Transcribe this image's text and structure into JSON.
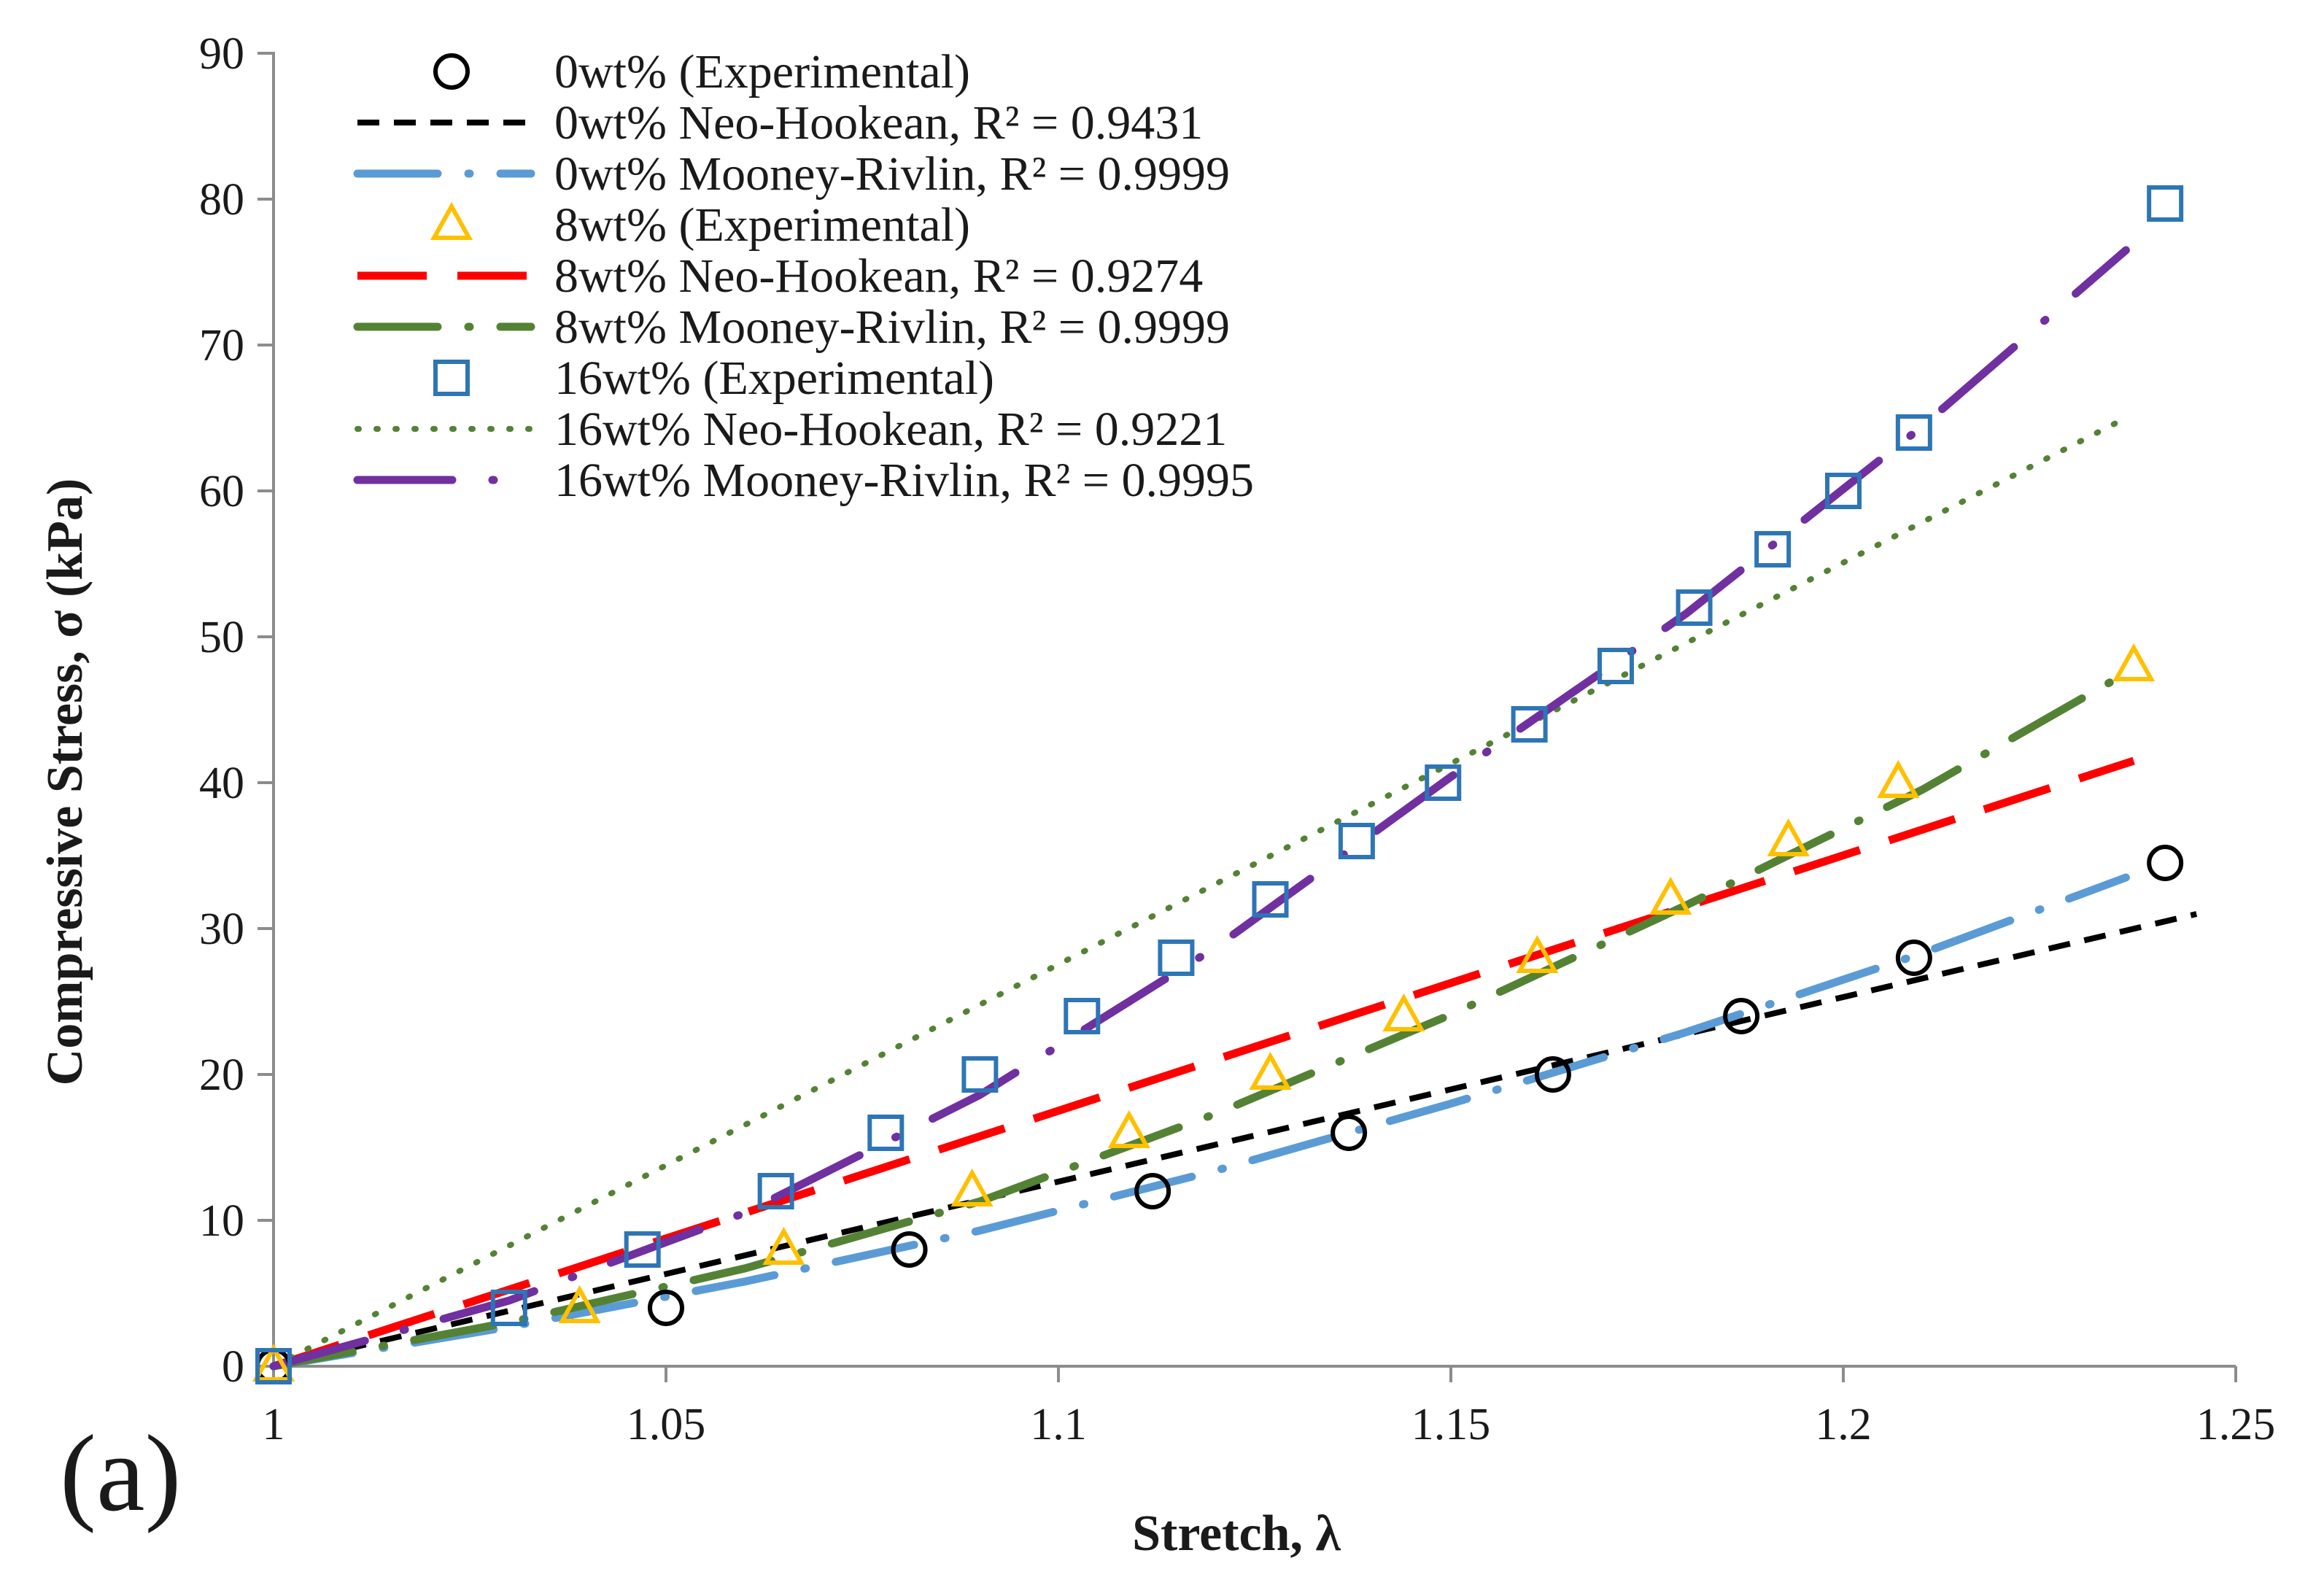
{
  "chart_data": {
    "type": "scatter",
    "panel_label": "(a)",
    "xlabel": "Stretch, λ",
    "ylabel": "Compressive Stress, σ (kPa)",
    "xlim": [
      1,
      1.25
    ],
    "ylim": [
      0,
      90
    ],
    "xticks": [
      1,
      1.05,
      1.1,
      1.15,
      1.2,
      1.25
    ],
    "xtick_labels": [
      "1",
      "1.05",
      "1.1",
      "1.15",
      "1.2",
      "1.25"
    ],
    "yticks": [
      0,
      10,
      20,
      30,
      40,
      50,
      60,
      70,
      80,
      90
    ],
    "ytick_labels": [
      "0",
      "10",
      "20",
      "30",
      "40",
      "50",
      "60",
      "70",
      "80",
      "90"
    ],
    "grid": false,
    "legend_position": "top-left",
    "series": [
      {
        "name": "0wt% (Experimental)",
        "kind": "markers",
        "marker": "circle",
        "color": "#000000",
        "x": [
          1.0,
          1.05,
          1.081,
          1.112,
          1.137,
          1.163,
          1.187,
          1.209,
          1.241
        ],
        "y": [
          0,
          4,
          8,
          12,
          16,
          20,
          24,
          28,
          34.5
        ]
      },
      {
        "name": "0wt% Neo-Hookean, R² = 0.9431",
        "kind": "line",
        "style": "dash-short",
        "color": "#000000",
        "x": [
          1.0,
          1.245
        ],
        "y": [
          0,
          31
        ]
      },
      {
        "name": "0wt% Mooney-Rivlin, R² = 0.9999",
        "kind": "line",
        "style": "dash-dot",
        "color": "#5b9bd5",
        "x": [
          1.0,
          1.03,
          1.06,
          1.09,
          1.12,
          1.15,
          1.18,
          1.21,
          1.236
        ],
        "y": [
          0,
          2.7,
          5.8,
          9.3,
          13.4,
          18.0,
          22.9,
          28.3,
          33.5
        ]
      },
      {
        "name": "8wt% (Experimental)",
        "kind": "markers",
        "marker": "triangle",
        "color": "#ffc000",
        "x": [
          1.0,
          1.039,
          1.065,
          1.089,
          1.109,
          1.127,
          1.144,
          1.161,
          1.178,
          1.193,
          1.207,
          1.237
        ],
        "y": [
          0,
          4,
          8,
          12,
          16,
          20,
          24,
          28,
          32,
          36,
          40,
          48
        ]
      },
      {
        "name": "8wt% Neo-Hookean, R² = 0.9274",
        "kind": "line",
        "style": "dash-long",
        "color": "#ff0000",
        "x": [
          1.0,
          1.237
        ],
        "y": [
          0,
          41.5
        ]
      },
      {
        "name": "8wt% Mooney-Rivlin, R² = 0.9999",
        "kind": "line",
        "style": "dash-dot",
        "color": "#548235",
        "x": [
          1.0,
          1.03,
          1.06,
          1.09,
          1.12,
          1.15,
          1.18,
          1.21,
          1.236
        ],
        "y": [
          0,
          3.0,
          6.7,
          11.3,
          17.3,
          24.1,
          31.6,
          39.5,
          47.5
        ]
      },
      {
        "name": "16wt% (Experimental)",
        "kind": "markers",
        "marker": "square",
        "color": "#2e75b6",
        "x": [
          1.0,
          1.03,
          1.047,
          1.064,
          1.078,
          1.09,
          1.103,
          1.115,
          1.127,
          1.138,
          1.149,
          1.16,
          1.171,
          1.181,
          1.191,
          1.2,
          1.209,
          1.241
        ],
        "y": [
          0,
          4,
          8,
          12,
          16,
          20,
          24,
          28,
          32,
          36,
          40,
          44,
          48,
          52,
          56,
          60,
          64,
          79.7
        ]
      },
      {
        "name": "16wt% Neo-Hookean, R² = 0.9221",
        "kind": "line",
        "style": "dot",
        "color": "#548235",
        "x": [
          1.0,
          1.236
        ],
        "y": [
          0,
          65
        ]
      },
      {
        "name": "16wt% Mooney-Rivlin, R² = 0.9995",
        "kind": "line",
        "style": "dash-dot-long",
        "color": "#7030a0",
        "x": [
          1.0,
          1.03,
          1.06,
          1.09,
          1.12,
          1.15,
          1.18,
          1.21,
          1.236
        ],
        "y": [
          0,
          4.5,
          10.5,
          18.6,
          28.7,
          40.4,
          51.6,
          64.4,
          76.5
        ]
      }
    ]
  }
}
